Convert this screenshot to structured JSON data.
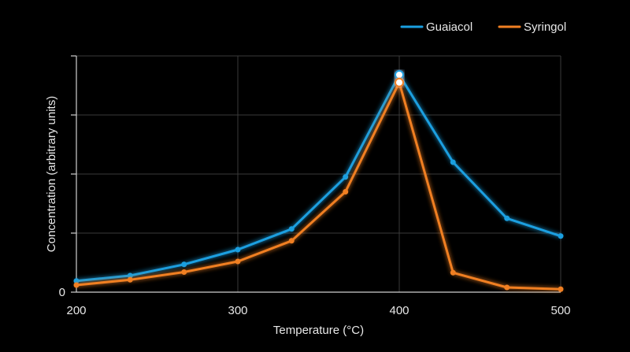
{
  "chart_data": {
    "type": "line",
    "title": "",
    "xlabel": "Temperature (°C)",
    "ylabel": "Concentration (arbitrary units)",
    "xlim": [
      200,
      500
    ],
    "ylim": [
      0,
      4
    ],
    "x_ticks": [
      "200",
      "300",
      "400",
      "500"
    ],
    "y_ticks": [
      "0"
    ],
    "grid": true,
    "legend_position": "top-right",
    "series": [
      {
        "name": "Guaiacol",
        "color": "#1a9fe0",
        "x": [
          200,
          233.3,
          266.7,
          300,
          333.3,
          366.7,
          400,
          433.3,
          466.7,
          500
        ],
        "values": [
          0.19,
          0.28,
          0.47,
          0.72,
          1.07,
          1.95,
          3.68,
          2.2,
          1.25,
          0.95
        ]
      },
      {
        "name": "Syringol",
        "color": "#f07f22",
        "x": [
          200,
          233.3,
          266.7,
          300,
          333.3,
          366.7,
          400,
          433.3,
          466.7,
          500
        ],
        "values": [
          0.12,
          0.21,
          0.34,
          0.52,
          0.87,
          1.7,
          3.55,
          0.33,
          0.08,
          0.05
        ]
      }
    ]
  }
}
